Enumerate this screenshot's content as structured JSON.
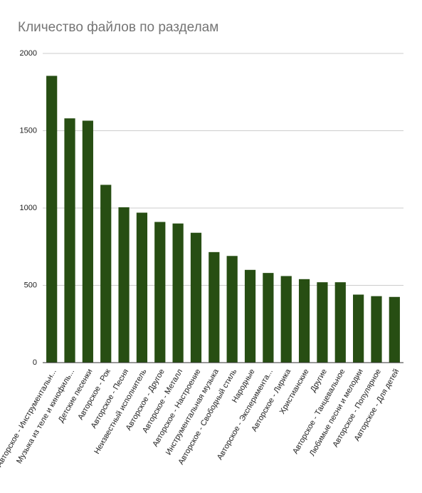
{
  "chart_data": {
    "type": "bar",
    "title": "Кличество файлов по разделам",
    "categories": [
      "Авторское - Инструментальн...",
      "Музыка из теле и кинофиль...",
      "Детские песенки",
      "Авторское - Рок",
      "Авторское - Песня",
      "Неизвестный исполнитель",
      "Авторское - Другое",
      "Авторское - Металл",
      "Авторское - Настроение",
      "Инструментальная музыка",
      "Авторское - Свободный стиль",
      "Народные",
      "Авторское - Эксперимента...",
      "Авторское - Лирика",
      "Христианские",
      "Другие",
      "Авторское - Танцевальное",
      "Любимые песни и мелодии",
      "Авторское - Популярное",
      "Авторское - Для детей"
    ],
    "values": [
      1855,
      1580,
      1565,
      1150,
      1005,
      970,
      910,
      900,
      840,
      715,
      690,
      600,
      580,
      560,
      540,
      520,
      520,
      440,
      430,
      425
    ],
    "color": "#274e13",
    "ylim": [
      0,
      2000
    ],
    "yticks": [
      0,
      500,
      1000,
      1500,
      2000
    ],
    "grid": true
  }
}
